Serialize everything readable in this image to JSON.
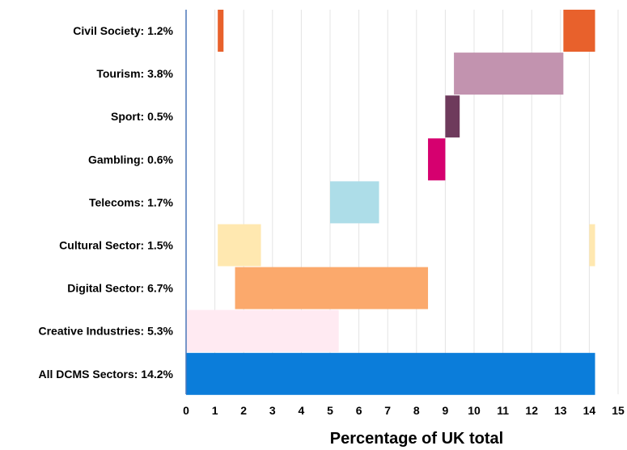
{
  "chart_data": {
    "type": "bar",
    "xlabel": "Percentage of UK total",
    "xlim": [
      0,
      15
    ],
    "x_ticks": [
      "0",
      "1",
      "2",
      "3",
      "4",
      "5",
      "6",
      "7",
      "8",
      "9",
      "10",
      "11",
      "12",
      "13",
      "14",
      "15"
    ],
    "grid": "vertical",
    "categories": [
      "Civil Society: 1.2%",
      "Tourism: 3.8%",
      "Sport: 0.5%",
      "Gambling: 0.6%",
      "Telecoms: 1.7%",
      "Cultural Sector: 1.5%",
      "Digital Sector: 6.7%",
      "Creative Industries: 5.3%",
      "All DCMS Sectors: 14.2%"
    ],
    "segments": [
      {
        "category_index": 0,
        "start": 1.1,
        "end": 1.3,
        "color": "#E8612C"
      },
      {
        "category_index": 0,
        "start": 13.1,
        "end": 14.2,
        "color": "#E8612C"
      },
      {
        "category_index": 1,
        "start": 9.3,
        "end": 13.1,
        "color": "#C293AF"
      },
      {
        "category_index": 2,
        "start": 9.0,
        "end": 9.5,
        "color": "#6E3A5C"
      },
      {
        "category_index": 3,
        "start": 8.4,
        "end": 9.0,
        "color": "#D6006F"
      },
      {
        "category_index": 4,
        "start": 5.0,
        "end": 6.7,
        "color": "#ADDDE8"
      },
      {
        "category_index": 5,
        "start": 1.1,
        "end": 2.6,
        "color": "#FFE8B0"
      },
      {
        "category_index": 5,
        "start": 14.0,
        "end": 14.2,
        "color": "#FFE8B0"
      },
      {
        "category_index": 6,
        "start": 1.7,
        "end": 8.4,
        "color": "#FBA96C"
      },
      {
        "category_index": 7,
        "start": 0.0,
        "end": 5.3,
        "color": "#FFEAF2"
      },
      {
        "category_index": 8,
        "start": 0.0,
        "end": 14.2,
        "color": "#0B7DDA"
      }
    ],
    "colors": {
      "grid": "#E4E4E4",
      "axis": "#4A76B8"
    }
  }
}
